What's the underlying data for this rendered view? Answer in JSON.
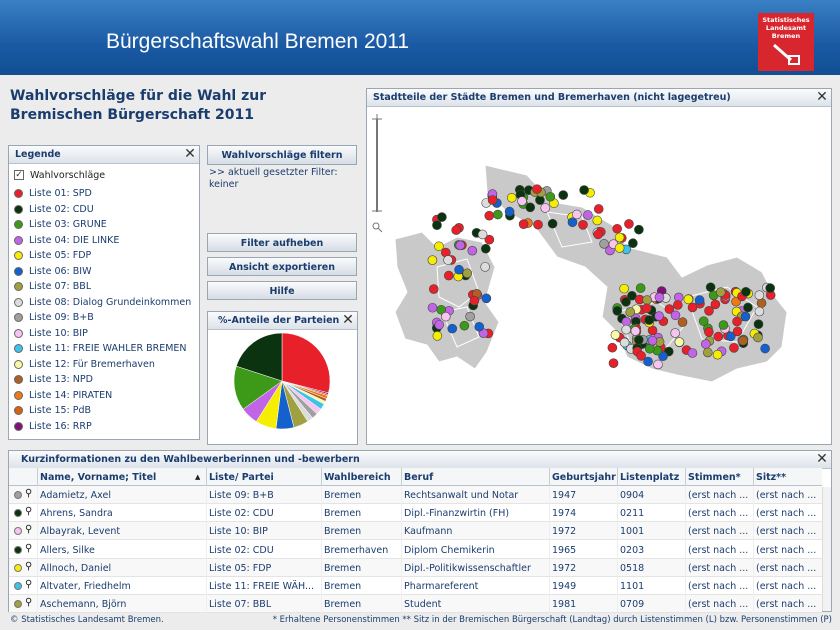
{
  "header": {
    "title": "Bürgerschaftswahl Bremen 2011",
    "logo": "Statistisches Landesamt Bremen"
  },
  "heading": [
    "Wahlvorschläge für die Wahl zur",
    "Bremischen Bürgerschaft 2011"
  ],
  "legend": {
    "title": "Legende",
    "toggle": "Wahlvorschläge",
    "items": [
      {
        "label": "Liste 01: SPD",
        "color": "#e8202a"
      },
      {
        "label": "Liste 02: CDU",
        "color": "#0b3310"
      },
      {
        "label": "Liste 03: GRÜNE",
        "color": "#3c9a18"
      },
      {
        "label": "Liste 04: DIE LINKE",
        "color": "#c264e6"
      },
      {
        "label": "Liste 05: FDP",
        "color": "#f6ee00"
      },
      {
        "label": "Liste 06: BIW",
        "color": "#1460cc"
      },
      {
        "label": "Liste 07: BBL",
        "color": "#a0a040"
      },
      {
        "label": "Liste 08: Dialog Grundeinkommen",
        "color": "#dcdcdc"
      },
      {
        "label": "Liste 09: B+B",
        "color": "#a0a0a0"
      },
      {
        "label": "Liste 10: BIP",
        "color": "#f8c4f0"
      },
      {
        "label": "Liste 11: FREIE WÄHLER BREMEN",
        "color": "#3ec4ec"
      },
      {
        "label": "Liste 12: Für Bremerhaven",
        "color": "#f8f8a8"
      },
      {
        "label": "Liste 13: NPD",
        "color": "#b06020"
      },
      {
        "label": "Liste 14: PIRATEN",
        "color": "#f07818"
      },
      {
        "label": "Liste 15: PdB",
        "color": "#d86010"
      },
      {
        "label": "Liste 16: RRP",
        "color": "#80107a"
      }
    ]
  },
  "buttons": {
    "filter": "Wahlvorschläge filtern",
    "filter_status": ">> aktuell gesetzter Filter: keiner",
    "reset": "Filter aufheben",
    "export": "Ansicht exportieren",
    "help": "Hilfe"
  },
  "pie": {
    "title": "%-Anteile der Parteien",
    "values": [
      29,
      20,
      15,
      6,
      7,
      6,
      5,
      2,
      2,
      2,
      2,
      1,
      1,
      1,
      0.5,
      0.5
    ]
  },
  "map": {
    "title": "Stadtteile der Städte Bremen und Bremerhaven (nicht lagegetreu)"
  },
  "table": {
    "title": "Kurzinformationen zu den Wahlbewerberinnen und -bewerbern",
    "columns": [
      "Name, Vorname; Titel",
      "Liste/ Partei",
      "Wahlbereich",
      "Beruf",
      "Geburtsjahr",
      "Listenplatz",
      "Stimmen*",
      "Sitz**"
    ],
    "sort_indicator": "▲",
    "rows": [
      {
        "color": "#a0a0a0",
        "cells": [
          "Adamietz, Axel",
          "Liste 09: B+B",
          "Bremen",
          "Rechtsanwalt und Notar",
          "1947",
          "0904",
          "(erst nach ...",
          "(erst nach ..."
        ]
      },
      {
        "color": "#0b3310",
        "cells": [
          "Ahrens, Sandra",
          "Liste 02: CDU",
          "Bremen",
          "Dipl.-Finanzwirtin (FH)",
          "1974",
          "0211",
          "(erst nach ...",
          "(erst nach ..."
        ]
      },
      {
        "color": "#f8c4f0",
        "cells": [
          "Albayrak, Levent",
          "Liste 10: BIP",
          "Bremen",
          "Kaufmann",
          "1972",
          "1001",
          "(erst nach ...",
          "(erst nach ..."
        ]
      },
      {
        "color": "#0b3310",
        "cells": [
          "Allers, Silke",
          "Liste 02: CDU",
          "Bremerhaven",
          "Diplom Chemikerin",
          "1965",
          "0203",
          "(erst nach ...",
          "(erst nach ..."
        ]
      },
      {
        "color": "#f6ee00",
        "cells": [
          "Allnoch, Daniel",
          "Liste 05: FDP",
          "Bremen",
          "Dipl.-Politikwissenschaftler",
          "1972",
          "0518",
          "(erst nach ...",
          "(erst nach ..."
        ]
      },
      {
        "color": "#3ec4ec",
        "cells": [
          "Altvater, Friedhelm",
          "Liste 11: FREIE WÄH...",
          "Bremen",
          "Pharmareferent",
          "1949",
          "1101",
          "(erst nach ...",
          "(erst nach ..."
        ]
      },
      {
        "color": "#a0a040",
        "cells": [
          "Aschemann, Björn",
          "Liste 07: BBL",
          "Bremen",
          "Student",
          "1981",
          "0709",
          "(erst nach ...",
          "(erst nach ..."
        ]
      }
    ]
  },
  "footer": {
    "copyright": "© Statistisches Landesamt Bremen.",
    "note": "* Erhaltene Personenstimmen ** Sitz in der Bremischen Bürgerschaft (Landtag) durch Listenstimmen (L) bzw. Personenstimmen (P)"
  }
}
